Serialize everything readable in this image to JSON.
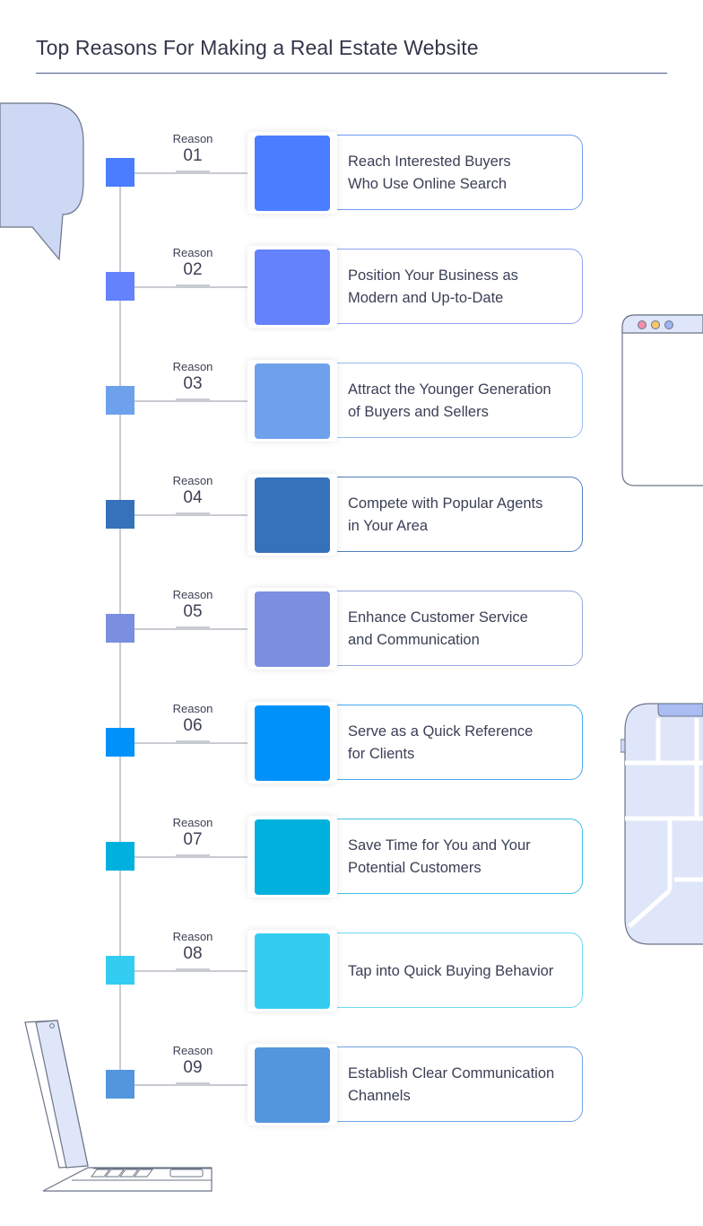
{
  "title": "Top Reasons For Making a Real Estate Website",
  "reasons": [
    {
      "label": "Reason",
      "number": "01",
      "text": "Reach Interested Buyers\nWho Use Online Search",
      "color": "#4a7dff",
      "border": "#6f9bf0"
    },
    {
      "label": "Reason",
      "number": "02",
      "text": "Position Your Business as\nModern and Up-to-Date",
      "color": "#6482fb",
      "border": "#8ea2f3"
    },
    {
      "label": "Reason",
      "number": "03",
      "text": "Attract the Younger Generation\nof Buyers and Sellers",
      "color": "#6da1ec",
      "border": "#94bbee"
    },
    {
      "label": "Reason",
      "number": "04",
      "text": "Compete with Popular Agents\nin Your Area",
      "color": "#3572ba",
      "border": "#4f7fbd"
    },
    {
      "label": "Reason",
      "number": "05",
      "text": "Enhance Customer Service\nand Communication",
      "color": "#7b8ee0",
      "border": "#9aa7dd"
    },
    {
      "label": "Reason",
      "number": "06",
      "text": "Serve as a Quick Reference\nfor Clients",
      "color": "#0091fb",
      "border": "#48a9ef"
    },
    {
      "label": "Reason",
      "number": "07",
      "text": "Save Time for You and Your\nPotential Customers",
      "color": "#00b1de",
      "border": "#3dc2e3"
    },
    {
      "label": "Reason",
      "number": "08",
      "text": "Tap into Quick Buying Behavior",
      "color": "#33cdf2",
      "border": "#6dd9f3"
    },
    {
      "label": "Reason",
      "number": "09",
      "text": "Establish Clear Communication\nChannels",
      "color": "#5396dd",
      "border": "#6ea6e1"
    }
  ]
}
